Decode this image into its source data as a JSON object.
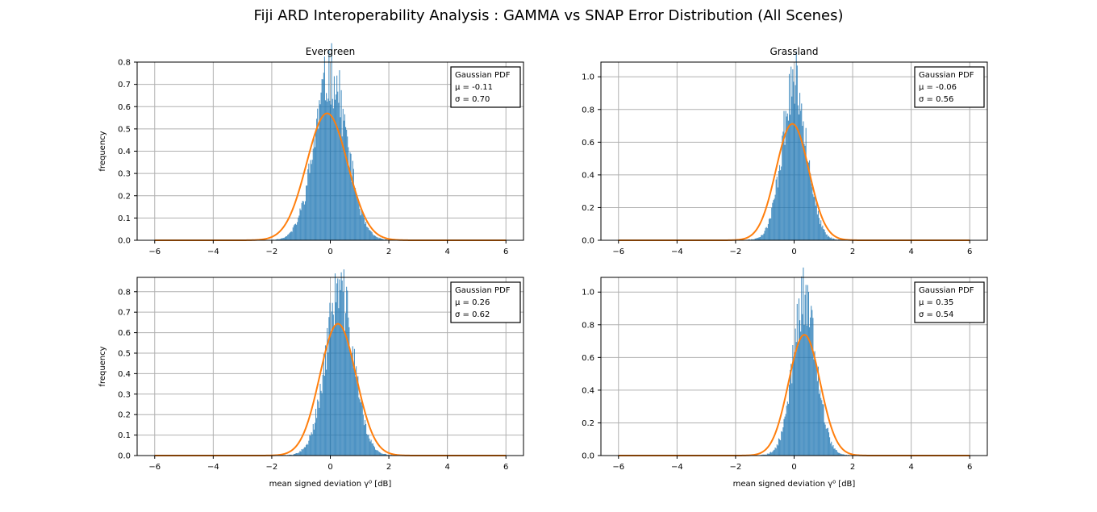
{
  "figure": {
    "title": "Fiji ARD Interoperability Analysis : GAMMA vs SNAP Error Distribution (All Scenes)"
  },
  "colors": {
    "hist": "#1f77b4",
    "pdf": "#ff7f0e",
    "grid": "#b0b0b0"
  },
  "chart_data": [
    {
      "type": "histogram",
      "title": "Evergreen",
      "xlabel": "",
      "ylabel": "frequency",
      "xlim": [
        -6.6,
        6.6
      ],
      "ylim": [
        0,
        0.8
      ],
      "xticks": [
        -6,
        -4,
        -2,
        0,
        2,
        4,
        6
      ],
      "yticks": [
        0.0,
        0.1,
        0.2,
        0.3,
        0.4,
        0.5,
        0.6,
        0.7,
        0.8
      ],
      "grid": true,
      "legend": {
        "position": "top-right",
        "lines": [
          "Gaussian PDF",
          "μ = -0.11",
          "σ = 0.70"
        ]
      },
      "pdf": {
        "mu": -0.11,
        "sigma": 0.7
      },
      "hist_peak": 0.76,
      "hist_center": 0.0,
      "hist_sigma": 0.55,
      "seed": 11
    },
    {
      "type": "histogram",
      "title": "Grassland",
      "xlabel": "",
      "ylabel": "",
      "xlim": [
        -6.6,
        6.6
      ],
      "ylim": [
        0,
        1.09
      ],
      "xticks": [
        -6,
        -4,
        -2,
        0,
        2,
        4,
        6
      ],
      "yticks": [
        0.0,
        0.2,
        0.4,
        0.6,
        0.8,
        1.0
      ],
      "grid": true,
      "legend": {
        "position": "top-right",
        "lines": [
          "Gaussian PDF",
          "μ = -0.06",
          "σ = 0.56"
        ]
      },
      "pdf": {
        "mu": -0.06,
        "sigma": 0.56
      },
      "hist_peak": 1.0,
      "hist_center": 0.0,
      "hist_sigma": 0.42,
      "seed": 23
    },
    {
      "type": "histogram",
      "title": "",
      "xlabel": "mean signed deviation γ⁰ [dB]",
      "ylabel": "frequency",
      "xlim": [
        -6.6,
        6.6
      ],
      "ylim": [
        0,
        0.87
      ],
      "xticks": [
        -6,
        -4,
        -2,
        0,
        2,
        4,
        6
      ],
      "yticks": [
        0.0,
        0.1,
        0.2,
        0.3,
        0.4,
        0.5,
        0.6,
        0.7,
        0.8
      ],
      "grid": true,
      "legend": {
        "position": "top-right",
        "lines": [
          "Gaussian PDF",
          "μ = 0.26",
          "σ = 0.62"
        ]
      },
      "pdf": {
        "mu": 0.26,
        "sigma": 0.62
      },
      "hist_peak": 0.82,
      "hist_center": 0.3,
      "hist_sigma": 0.48,
      "seed": 37
    },
    {
      "type": "histogram",
      "title": "",
      "xlabel": "mean signed deviation γ⁰ [dB]",
      "ylabel": "",
      "xlim": [
        -6.6,
        6.6
      ],
      "ylim": [
        0,
        1.09
      ],
      "xticks": [
        -6,
        -4,
        -2,
        0,
        2,
        4,
        6
      ],
      "yticks": [
        0.0,
        0.2,
        0.4,
        0.6,
        0.8,
        1.0
      ],
      "grid": true,
      "legend": {
        "position": "top-right",
        "lines": [
          "Gaussian PDF",
          "μ = 0.35",
          "σ = 0.54"
        ]
      },
      "pdf": {
        "mu": 0.35,
        "sigma": 0.54
      },
      "hist_peak": 1.0,
      "hist_center": 0.35,
      "hist_sigma": 0.4,
      "seed": 51
    }
  ]
}
